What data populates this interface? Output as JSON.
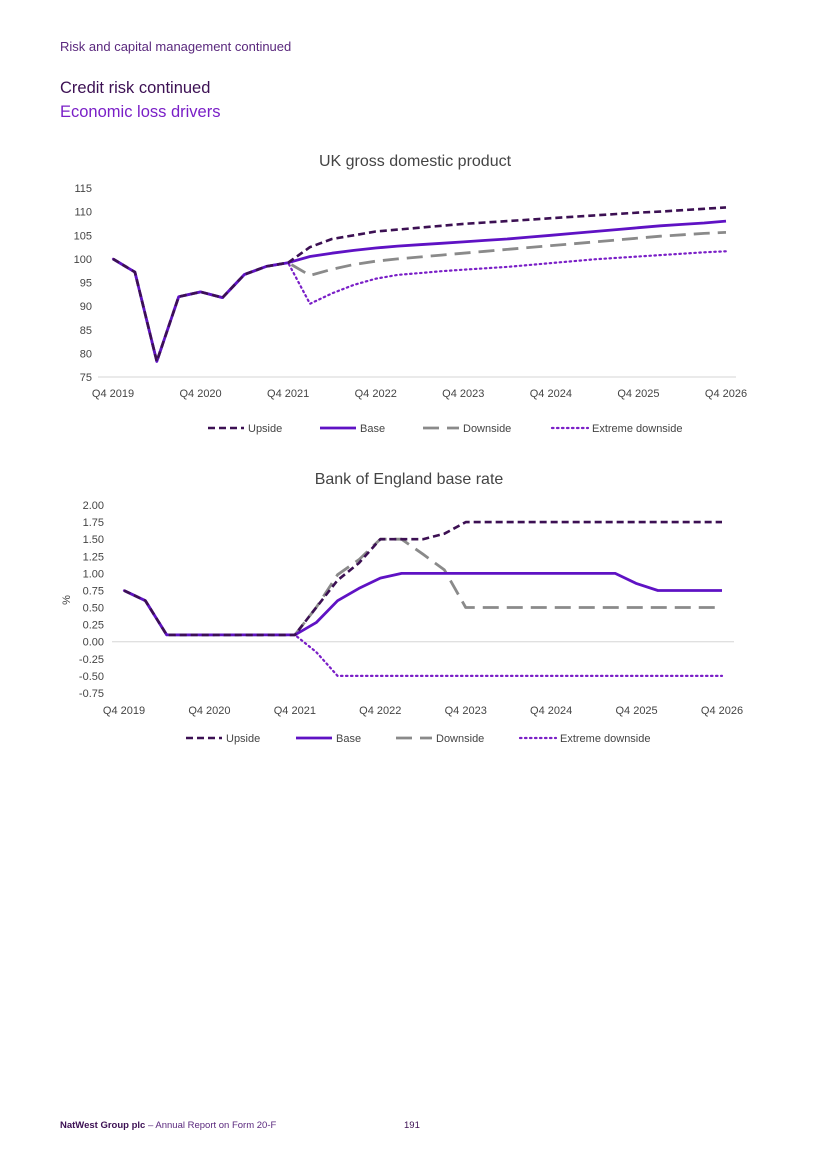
{
  "header": {
    "section": "Risk and capital management continued",
    "title": "Credit risk continued",
    "subtitle": "Economic loss drivers"
  },
  "colors": {
    "upside": "#3c1053",
    "base": "#5f12c4",
    "downside": "#8a8a8a",
    "extreme_downside": "#7a1fc7"
  },
  "chart_data": [
    {
      "type": "line",
      "title": "UK gross domestic product",
      "xlabel": "",
      "ylabel": "",
      "ylim": [
        75,
        115
      ],
      "yticks": [
        "115",
        "110",
        "105",
        "100",
        "95",
        "90",
        "85",
        "80",
        "75"
      ],
      "xticks": [
        "Q4 2019",
        "Q4 2020",
        "Q4 2021",
        "Q4 2022",
        "Q4 2023",
        "Q4 2024",
        "Q4 2025",
        "Q4 2026"
      ],
      "grid": "none",
      "legend_position": "bottom",
      "x": [
        0,
        1,
        2,
        3,
        4,
        5,
        6,
        7,
        8,
        9,
        10,
        11,
        12,
        13,
        14,
        15,
        16,
        17,
        18,
        19,
        20,
        21,
        22,
        23,
        24,
        25,
        26,
        27,
        28
      ],
      "series": [
        {
          "name": "Upside",
          "style": "upside",
          "values": [
            100,
            97.2,
            78.3,
            92,
            93,
            91.8,
            96.7,
            98.4,
            99.2,
            102.5,
            104.2,
            105,
            105.8,
            106.2,
            106.6,
            107,
            107.4,
            107.7,
            108,
            108.3,
            108.6,
            108.9,
            109.2,
            109.5,
            109.8,
            110,
            110.3,
            110.6,
            110.9
          ]
        },
        {
          "name": "Base",
          "style": "base",
          "values": [
            100,
            97.2,
            78.3,
            92,
            93,
            91.8,
            96.7,
            98.4,
            99.2,
            100.5,
            101.2,
            101.8,
            102.3,
            102.7,
            103,
            103.3,
            103.6,
            103.9,
            104.2,
            104.6,
            105,
            105.4,
            105.8,
            106.2,
            106.6,
            107,
            107.3,
            107.6,
            108
          ]
        },
        {
          "name": "Downside",
          "style": "downside",
          "values": [
            100,
            97.2,
            78.3,
            92,
            93,
            91.8,
            96.7,
            98.4,
            99.2,
            96.5,
            97.8,
            98.8,
            99.5,
            100,
            100.4,
            100.8,
            101.2,
            101.6,
            102,
            102.4,
            102.8,
            103.2,
            103.6,
            104,
            104.4,
            104.8,
            105.1,
            105.4,
            105.6
          ]
        },
        {
          "name": "Extreme downside",
          "style": "extreme",
          "values": [
            100,
            97.2,
            78.3,
            92,
            93,
            91.8,
            96.7,
            98.4,
            99.2,
            90.5,
            92.7,
            94.5,
            95.8,
            96.6,
            97,
            97.4,
            97.7,
            98,
            98.3,
            98.7,
            99.1,
            99.5,
            99.9,
            100.2,
            100.5,
            100.8,
            101.1,
            101.4,
            101.6
          ]
        }
      ]
    },
    {
      "type": "line",
      "title": "Bank of England base rate",
      "xlabel": "",
      "ylabel": "%",
      "ylim": [
        -0.75,
        2.0
      ],
      "yticks": [
        "2.00",
        "1.75",
        "1.50",
        "1.25",
        "1.00",
        "0.75",
        "0.50",
        "0.25",
        "0.00",
        "-0.25",
        "-0.50",
        "-0.75"
      ],
      "xticks": [
        "Q4 2019",
        "Q4 2020",
        "Q4 2021",
        "Q4 2022",
        "Q4 2023",
        "Q4 2024",
        "Q4 2025",
        "Q4 2026"
      ],
      "grid": "none",
      "legend_position": "bottom",
      "x": [
        0,
        1,
        2,
        3,
        4,
        5,
        6,
        7,
        8,
        9,
        10,
        11,
        12,
        13,
        14,
        15,
        16,
        17,
        18,
        19,
        20,
        21,
        22,
        23,
        24,
        25,
        26,
        27,
        28
      ],
      "series": [
        {
          "name": "Upside",
          "style": "upside",
          "values": [
            0.75,
            0.6,
            0.1,
            0.1,
            0.1,
            0.1,
            0.1,
            0.1,
            0.1,
            0.5,
            0.9,
            1.15,
            1.5,
            1.5,
            1.5,
            1.58,
            1.75,
            1.75,
            1.75,
            1.75,
            1.75,
            1.75,
            1.75,
            1.75,
            1.75,
            1.75,
            1.75,
            1.75,
            1.75
          ]
        },
        {
          "name": "Base",
          "style": "base",
          "values": [
            0.75,
            0.6,
            0.1,
            0.1,
            0.1,
            0.1,
            0.1,
            0.1,
            0.1,
            0.28,
            0.6,
            0.78,
            0.93,
            1.0,
            1.0,
            1.0,
            1.0,
            1.0,
            1.0,
            1.0,
            1.0,
            1.0,
            1.0,
            1.0,
            0.85,
            0.75,
            0.75,
            0.75,
            0.75
          ]
        },
        {
          "name": "Downside",
          "style": "downside",
          "values": [
            0.75,
            0.6,
            0.1,
            0.1,
            0.1,
            0.1,
            0.1,
            0.1,
            0.1,
            0.5,
            0.98,
            1.2,
            1.5,
            1.5,
            1.28,
            1.05,
            0.5,
            0.5,
            0.5,
            0.5,
            0.5,
            0.5,
            0.5,
            0.5,
            0.5,
            0.5,
            0.5,
            0.5,
            0.5
          ]
        },
        {
          "name": "Extreme downside",
          "style": "extreme",
          "values": [
            0.75,
            0.6,
            0.1,
            0.1,
            0.1,
            0.1,
            0.1,
            0.1,
            0.1,
            -0.15,
            -0.5,
            -0.5,
            -0.5,
            -0.5,
            -0.5,
            -0.5,
            -0.5,
            -0.5,
            -0.5,
            -0.5,
            -0.5,
            -0.5,
            -0.5,
            -0.5,
            -0.5,
            -0.5,
            -0.5,
            -0.5,
            -0.5
          ]
        }
      ]
    }
  ],
  "footer": {
    "brand": "NatWest Group plc",
    "doc": " – Annual Report on Form 20-F",
    "page": "191"
  }
}
